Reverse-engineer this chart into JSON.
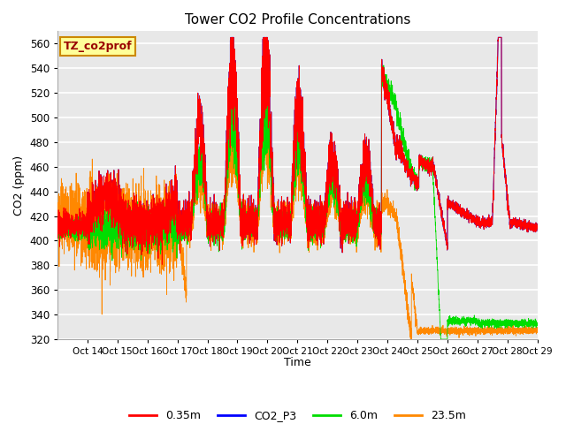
{
  "title": "Tower CO2 Profile Concentrations",
  "xlabel": "Time",
  "ylabel": "CO2 (ppm)",
  "ylim": [
    320,
    570
  ],
  "yticks": [
    320,
    340,
    360,
    380,
    400,
    420,
    440,
    460,
    480,
    500,
    520,
    540,
    560
  ],
  "xtick_labels": [
    "Oct 14",
    "Oct 15",
    "Oct 16",
    "Oct 17",
    "Oct 18",
    "Oct 19",
    "Oct 20",
    "Oct 21",
    "Oct 22",
    "Oct 23",
    "Oct 24",
    "Oct 25",
    "Oct 26",
    "Oct 27",
    "Oct 28",
    "Oct 29"
  ],
  "legend_labels": [
    "0.35m",
    "CO2_P3",
    "6.0m",
    "23.5m"
  ],
  "line_colors_hex": {
    "red": "#ff0000",
    "blue": "#0000ff",
    "green": "#00cc00",
    "orange": "#ff8800"
  },
  "annotation_text": "TZ_co2prof",
  "annotation_facecolor": "#ffff99",
  "annotation_edgecolor": "#cc8800",
  "bg_color": "#e8e8e8",
  "grid_color": "white",
  "seed": 1234
}
